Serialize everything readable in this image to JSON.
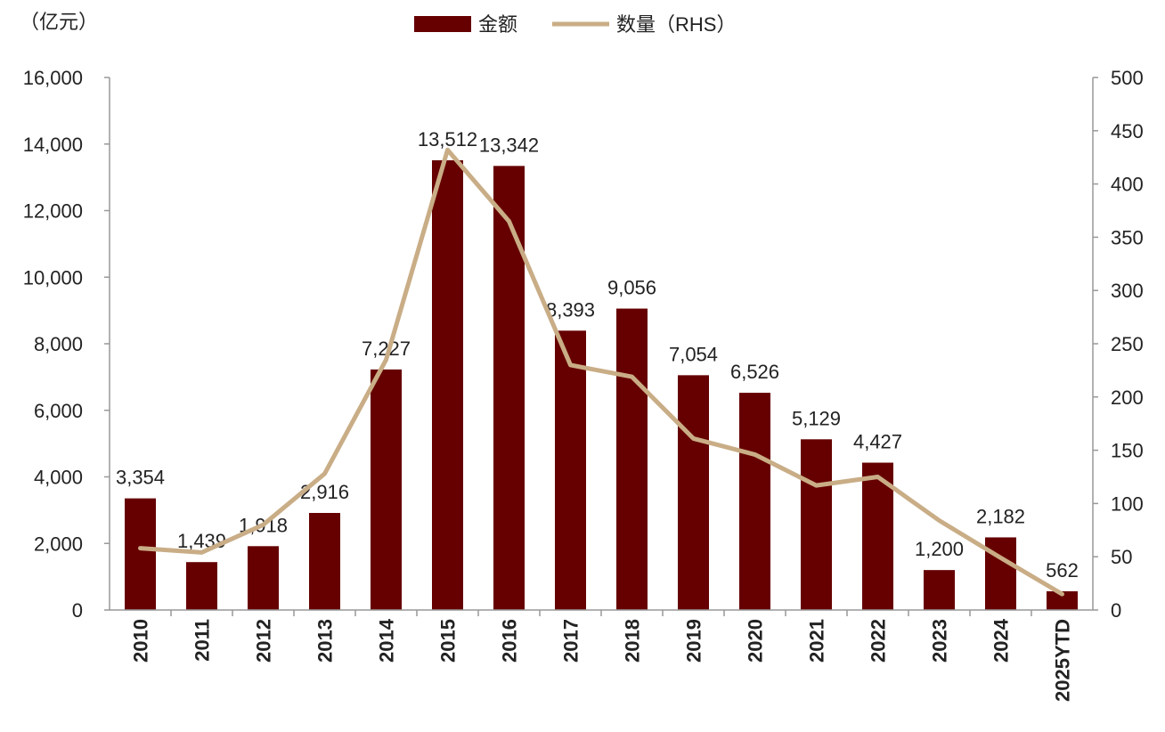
{
  "chart_data": {
    "type": "bar",
    "y_unit": "（亿元）",
    "categories": [
      "2010",
      "2011",
      "2012",
      "2013",
      "2014",
      "2015",
      "2016",
      "2017",
      "2018",
      "2019",
      "2020",
      "2021",
      "2022",
      "2023",
      "2024",
      "2025YTD"
    ],
    "series": [
      {
        "name": "金额",
        "type": "bar",
        "axis": "left",
        "color": "#660000",
        "values": [
          3354,
          1439,
          1918,
          2916,
          7227,
          13512,
          13342,
          8393,
          9056,
          7054,
          6526,
          5129,
          4427,
          1200,
          2182,
          562
        ],
        "labels": [
          "3,354",
          "1,439",
          "1,918",
          "2,916",
          "7,227",
          "13,512",
          "13,342",
          "8,393",
          "9,056",
          "7,054",
          "6,526",
          "5,129",
          "4,427",
          "1,200",
          "2,182",
          "562"
        ]
      },
      {
        "name": "数量（RHS）",
        "type": "line",
        "axis": "right",
        "color": "#C9AD86",
        "values": [
          58,
          54,
          80,
          128,
          235,
          432,
          365,
          230,
          219,
          161,
          146,
          117,
          125,
          84,
          49,
          15
        ]
      }
    ],
    "ylim": [
      0,
      16000
    ],
    "y2lim": [
      0,
      500
    ],
    "yticks": [
      "0",
      "2,000",
      "4,000",
      "6,000",
      "8,000",
      "10,000",
      "12,000",
      "14,000",
      "16,000"
    ],
    "y2ticks": [
      "0",
      "50",
      "100",
      "150",
      "200",
      "250",
      "300",
      "350",
      "400",
      "450",
      "500"
    ],
    "legend": "top-center",
    "grid": false
  }
}
